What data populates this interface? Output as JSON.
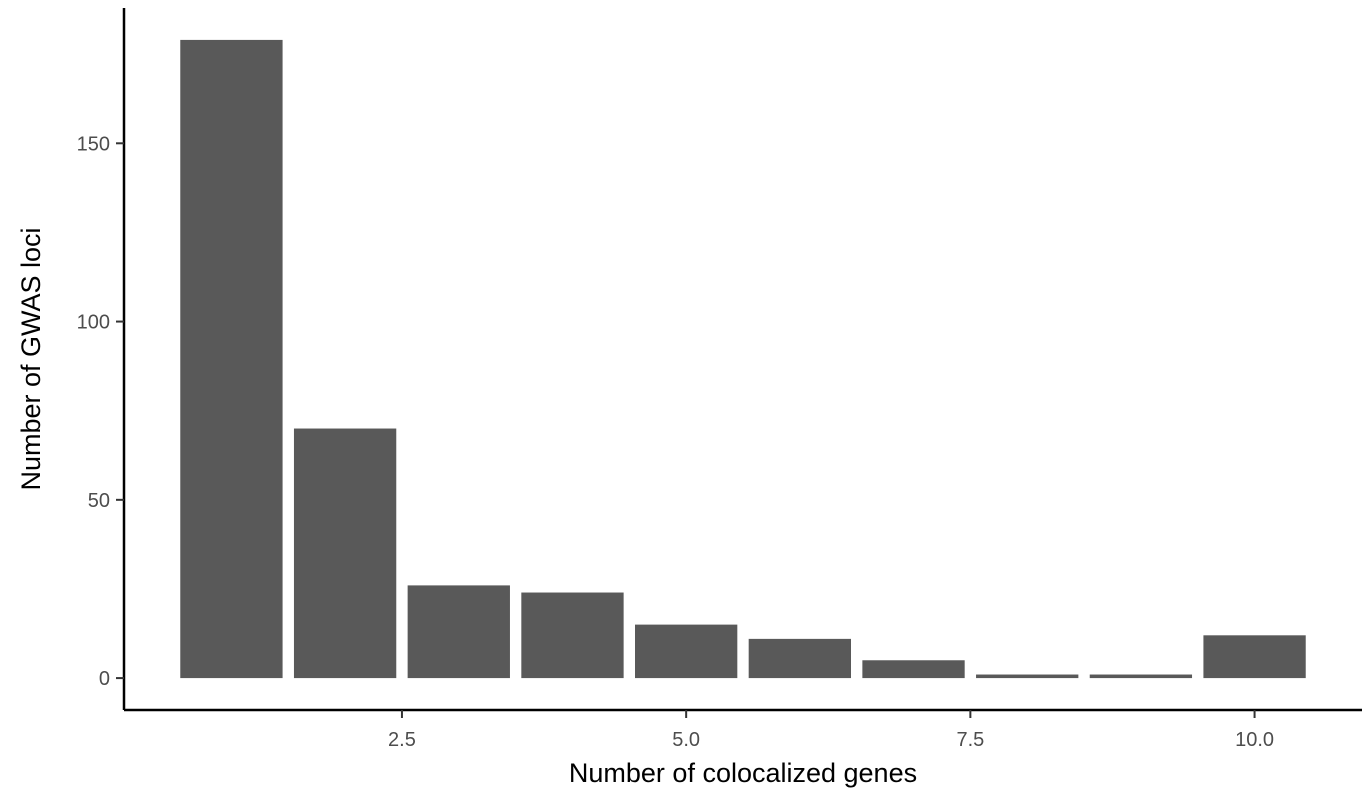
{
  "chart_data": {
    "type": "bar",
    "x_label": "Number of colocalized genes",
    "y_label": "Number of GWAS loci",
    "x": [
      1,
      2,
      3,
      4,
      5,
      6,
      7,
      8,
      9,
      10
    ],
    "values": [
      179,
      70,
      26,
      24,
      15,
      11,
      5,
      1,
      1,
      12
    ],
    "color": "#595959",
    "xlim": [
      0.055,
      10.945
    ],
    "xticks": [
      2.5,
      {
        "value": 5,
        "label": "5.0"
      },
      7.5,
      {
        "value": 10,
        "label": "10.0"
      }
    ],
    "ylim": [
      -8.95,
      187.95
    ],
    "yticks": [
      0,
      50,
      100,
      150
    ],
    "grid": false
  }
}
